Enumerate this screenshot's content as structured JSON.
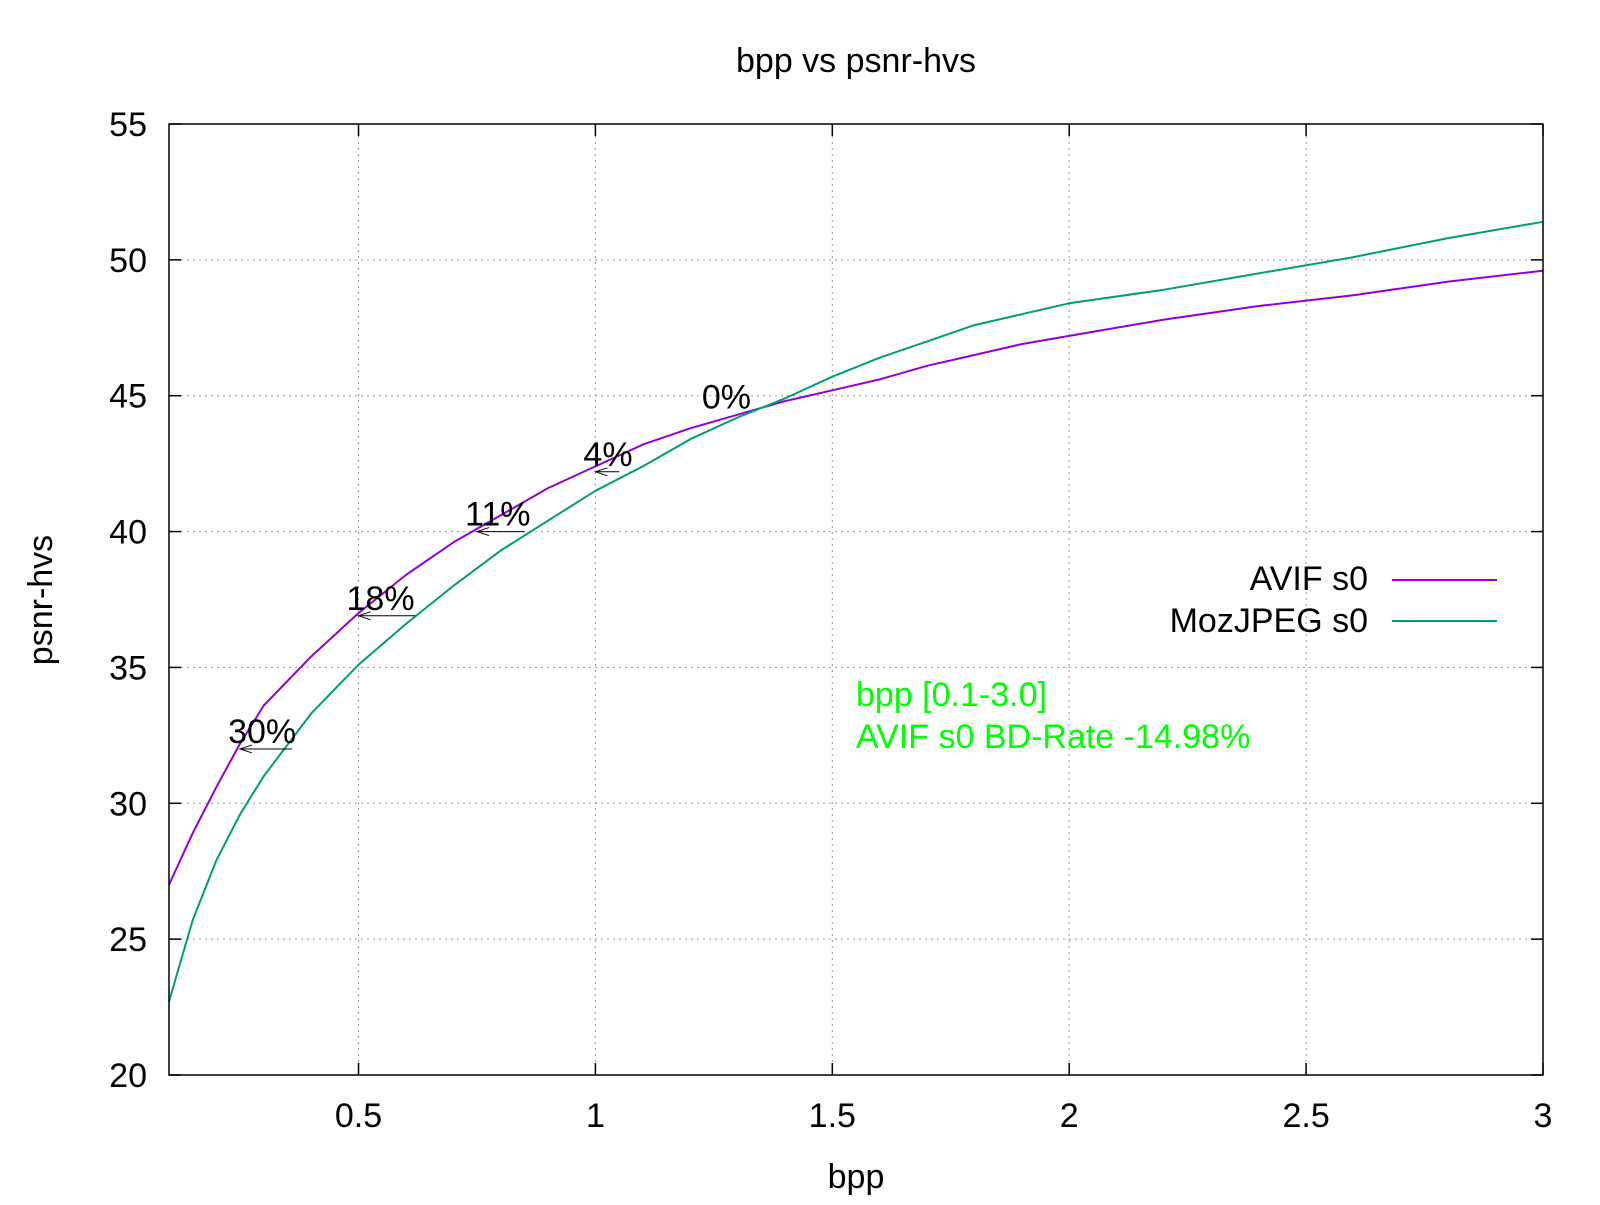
{
  "chart_data": {
    "type": "line",
    "title": "bpp vs psnr-hvs",
    "xlabel": "bpp",
    "ylabel": "psnr-hvs",
    "xlim": [
      0.1,
      3.0
    ],
    "ylim": [
      20,
      55
    ],
    "xticks": [
      0.5,
      1,
      1.5,
      2,
      2.5,
      3
    ],
    "xtick_labels": [
      "0.5",
      "1",
      "1.5",
      "2",
      "2.5",
      "3"
    ],
    "yticks": [
      20,
      25,
      30,
      35,
      40,
      45,
      50,
      55
    ],
    "ytick_labels": [
      "20",
      "25",
      "30",
      "35",
      "40",
      "45",
      "50",
      "55"
    ],
    "grid": true,
    "legend_position": "right",
    "series": [
      {
        "name": "AVIF s0",
        "color": "#9400d3",
        "x": [
          0.1,
          0.15,
          0.2,
          0.25,
          0.3,
          0.4,
          0.5,
          0.6,
          0.7,
          0.8,
          0.9,
          1.0,
          1.1,
          1.2,
          1.3,
          1.4,
          1.5,
          1.6,
          1.7,
          1.8,
          1.9,
          2.0,
          2.2,
          2.4,
          2.6,
          2.8,
          3.0
        ],
        "y": [
          27.0,
          28.9,
          30.6,
          32.2,
          33.6,
          35.4,
          37.0,
          38.4,
          39.6,
          40.6,
          41.6,
          42.4,
          43.2,
          43.8,
          44.3,
          44.8,
          45.2,
          45.6,
          46.1,
          46.5,
          46.9,
          47.2,
          47.8,
          48.3,
          48.7,
          49.2,
          49.6
        ]
      },
      {
        "name": "MozJPEG s0",
        "color": "#009e73",
        "x": [
          0.1,
          0.15,
          0.2,
          0.25,
          0.3,
          0.4,
          0.5,
          0.6,
          0.7,
          0.8,
          0.9,
          1.0,
          1.1,
          1.2,
          1.3,
          1.4,
          1.5,
          1.6,
          1.7,
          1.8,
          1.9,
          2.0,
          2.2,
          2.4,
          2.6,
          2.8,
          3.0
        ],
        "y": [
          22.7,
          25.7,
          27.9,
          29.6,
          31.0,
          33.3,
          35.1,
          36.6,
          38.0,
          39.3,
          40.4,
          41.5,
          42.4,
          43.4,
          44.2,
          44.9,
          45.7,
          46.4,
          47.0,
          47.6,
          48.0,
          48.4,
          48.9,
          49.5,
          50.1,
          50.8,
          51.4
        ]
      }
    ],
    "annotations": [
      {
        "text": "30%",
        "y": 32.0,
        "arrow_from_x": 0.36,
        "arrow_to_x": 0.25
      },
      {
        "text": "18%",
        "y": 36.9,
        "arrow_from_x": 0.62,
        "arrow_to_x": 0.5
      },
      {
        "text": "11%",
        "y": 40.0,
        "arrow_from_x": 0.85,
        "arrow_to_x": 0.75
      },
      {
        "text": "4%",
        "y": 42.2,
        "arrow_from_x": 1.05,
        "arrow_to_x": 1.0
      },
      {
        "text": "0%",
        "y": 44.3,
        "arrow_from_x": 1.25,
        "arrow_to_x": 1.25
      }
    ],
    "info": {
      "line1": "bpp [0.1-3.0]",
      "line2": "AVIF s0 BD-Rate -14.98%",
      "color": "#00ff00"
    }
  }
}
